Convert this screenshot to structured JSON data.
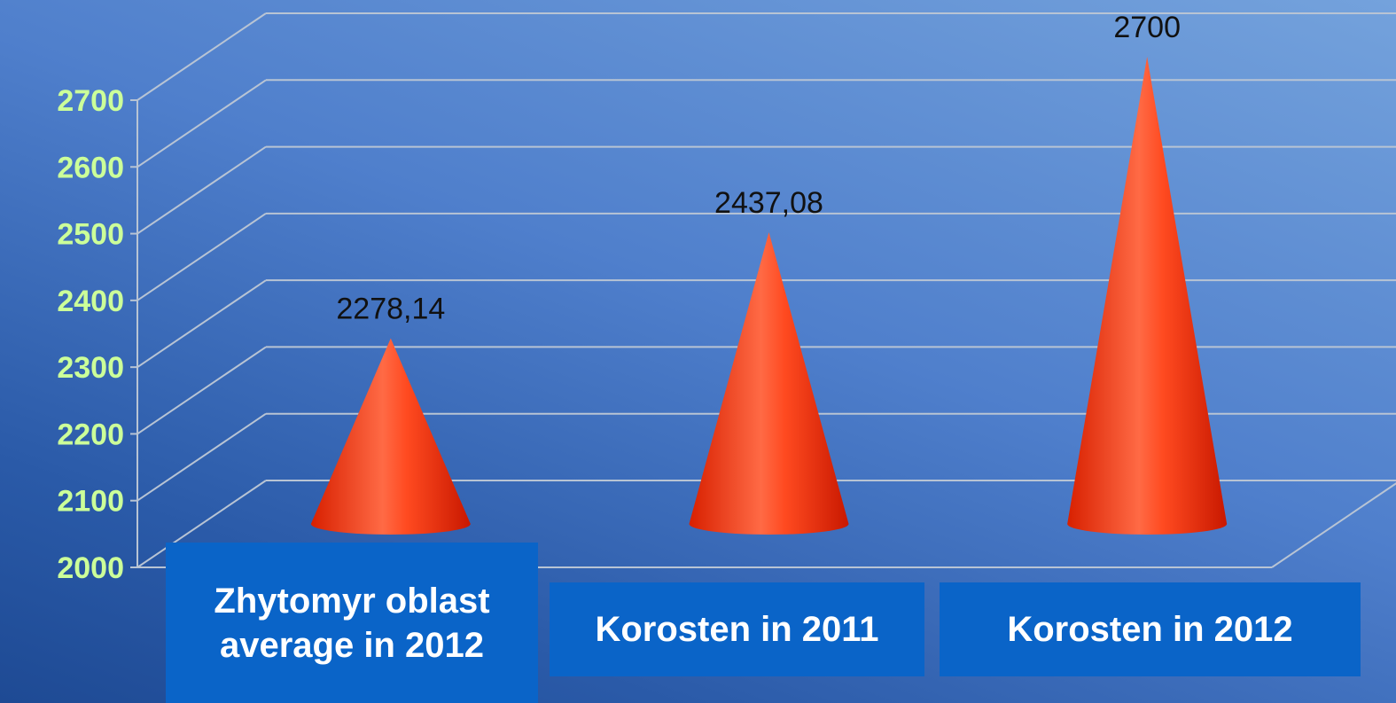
{
  "chart_data": {
    "type": "cone",
    "categories": [
      "Zhytomyr oblast average in 2012",
      "Korosten in 2011",
      "Korosten in 2012"
    ],
    "values": [
      2278.14,
      2437.08,
      2700
    ],
    "value_labels": [
      "2278,14",
      "2437,08",
      "2700"
    ],
    "color": "#ff3a10",
    "ylim": [
      2000,
      2700
    ],
    "yticks": [
      2000,
      2100,
      2200,
      2300,
      2400,
      2500,
      2600,
      2700
    ],
    "grid": true
  }
}
